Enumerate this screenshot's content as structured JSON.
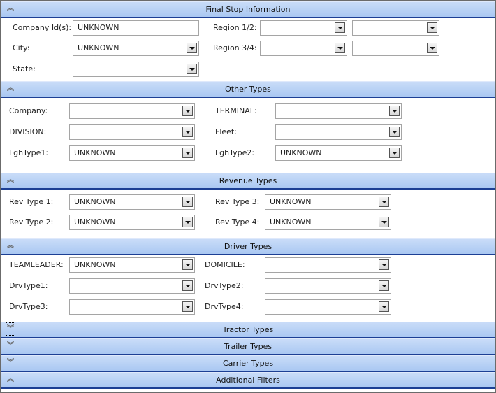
{
  "sections": [
    {
      "title": "Final Stop Information",
      "expanded": true,
      "rows": [
        [
          {
            "label": "Company Id(s):",
            "fields": [
              {
                "type": "text",
                "value": "UNKNOWN"
              }
            ]
          },
          {
            "label": "Region 1/2:",
            "fields": [
              {
                "type": "select",
                "value": ""
              },
              {
                "type": "select",
                "value": ""
              }
            ]
          }
        ],
        [
          {
            "label": "City:",
            "fields": [
              {
                "type": "select",
                "value": "UNKNOWN"
              }
            ]
          },
          {
            "label": "Region 3/4:",
            "fields": [
              {
                "type": "select",
                "value": ""
              },
              {
                "type": "select",
                "value": ""
              }
            ]
          }
        ],
        [
          {
            "label": "State:",
            "fields": [
              {
                "type": "select",
                "value": ""
              }
            ]
          }
        ]
      ]
    },
    {
      "title": "Other Types",
      "expanded": true,
      "rows": [
        [
          {
            "label": "Company:",
            "fields": [
              {
                "type": "select",
                "value": ""
              }
            ]
          },
          {
            "label": "TERMINAL:",
            "fields": [
              {
                "type": "select",
                "value": ""
              }
            ]
          }
        ],
        [
          {
            "label": "DIVISION:",
            "fields": [
              {
                "type": "select",
                "value": ""
              }
            ]
          },
          {
            "label": "Fleet:",
            "fields": [
              {
                "type": "select",
                "value": ""
              }
            ]
          }
        ],
        [
          {
            "label": "LghType1:",
            "fields": [
              {
                "type": "select",
                "value": "UNKNOWN"
              }
            ]
          },
          {
            "label": "LghType2:",
            "fields": [
              {
                "type": "select",
                "value": "UNKNOWN"
              }
            ]
          }
        ]
      ]
    },
    {
      "title": "Revenue Types",
      "expanded": true,
      "rows": [
        [
          {
            "label": "Rev Type 1:",
            "fields": [
              {
                "type": "select",
                "value": "UNKNOWN"
              }
            ]
          },
          {
            "label": "Rev Type 3:",
            "fields": [
              {
                "type": "select",
                "value": "UNKNOWN"
              }
            ]
          }
        ],
        [
          {
            "label": "Rev Type 2:",
            "fields": [
              {
                "type": "select",
                "value": "UNKNOWN"
              }
            ]
          },
          {
            "label": "Rev Type 4:",
            "fields": [
              {
                "type": "select",
                "value": "UNKNOWN"
              }
            ]
          }
        ]
      ]
    },
    {
      "title": "Driver Types",
      "expanded": true,
      "rows": [
        [
          {
            "label": "TEAMLEADER:",
            "fields": [
              {
                "type": "select",
                "value": "UNKNOWN"
              }
            ]
          },
          {
            "label": "DOMICILE:",
            "fields": [
              {
                "type": "select",
                "value": ""
              }
            ]
          }
        ],
        [
          {
            "label": "DrvType1:",
            "fields": [
              {
                "type": "select",
                "value": ""
              }
            ]
          },
          {
            "label": "DrvType2:",
            "fields": [
              {
                "type": "select",
                "value": ""
              }
            ]
          }
        ],
        [
          {
            "label": "DrvType3:",
            "fields": [
              {
                "type": "select",
                "value": ""
              }
            ]
          },
          {
            "label": "DrvType4:",
            "fields": [
              {
                "type": "select",
                "value": ""
              }
            ]
          }
        ]
      ]
    },
    {
      "title": "Tractor Types",
      "expanded": false,
      "focused": true
    },
    {
      "title": "Trailer Types",
      "expanded": false
    },
    {
      "title": "Carrier Types",
      "expanded": false
    },
    {
      "title": "Additional Filters",
      "expanded": true
    }
  ],
  "icons": {
    "expanded": "double-chevron-up-icon",
    "collapsed": "double-chevron-down-icon"
  }
}
